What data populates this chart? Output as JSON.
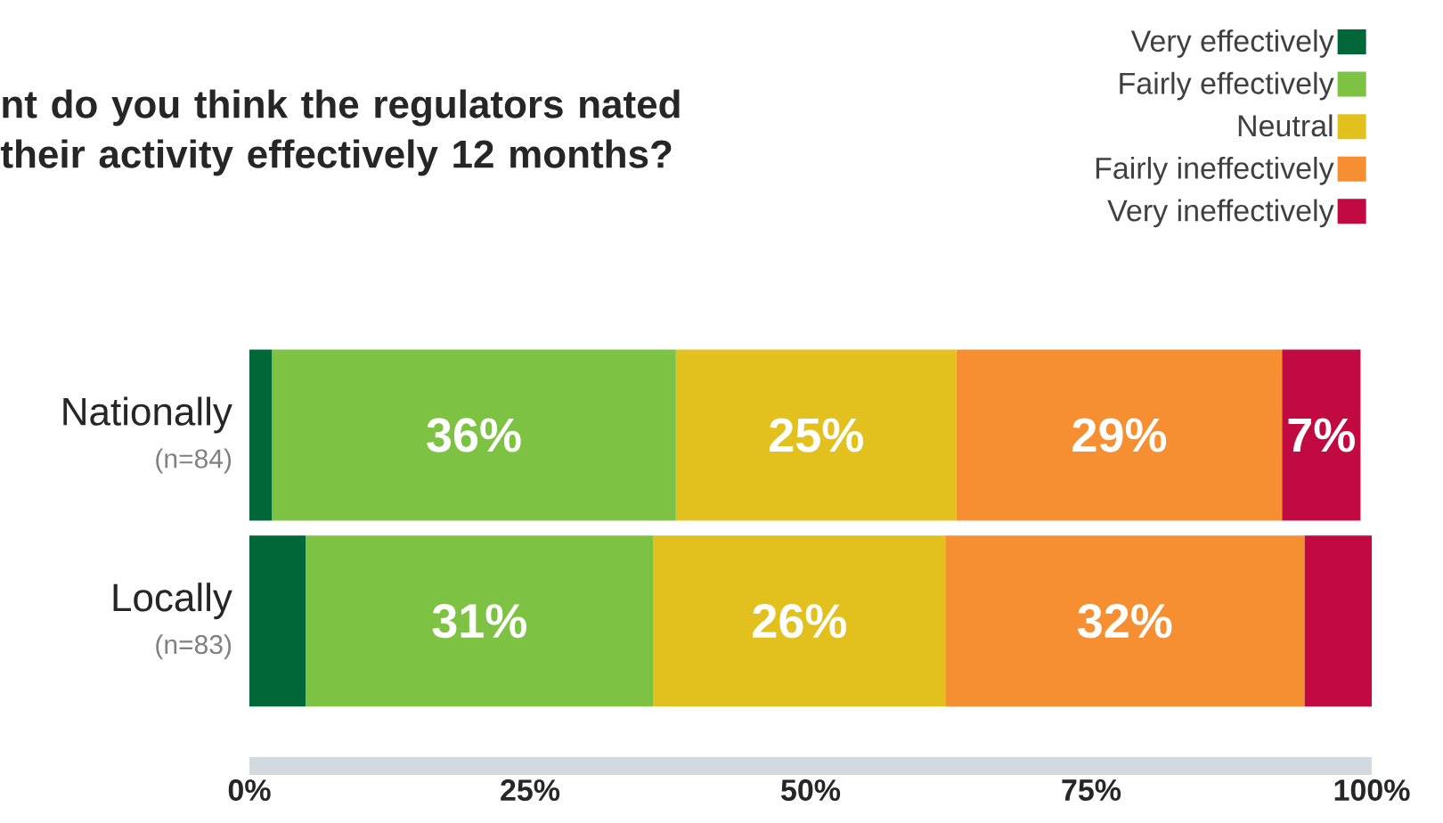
{
  "chart_data": {
    "type": "bar",
    "orientation": "horizontal",
    "stacked": true,
    "title": "nt do you think the regulators nated their activity effectively 12 months?",
    "categories": [
      "Nationally",
      "Locally"
    ],
    "annotations": [
      "(n=84)",
      "(n=83)"
    ],
    "series": [
      {
        "name": "Very effectively",
        "color": "#006838",
        "values": [
          2,
          5
        ],
        "value_labels": [
          null,
          null
        ]
      },
      {
        "name": "Fairly effectively",
        "color": "#7dc242",
        "values": [
          36,
          31
        ],
        "value_labels": [
          "36%",
          "31%"
        ]
      },
      {
        "name": "Neutral",
        "color": "#e2c11f",
        "values": [
          25,
          26
        ],
        "value_labels": [
          "25%",
          "26%"
        ]
      },
      {
        "name": "Fairly ineffectively",
        "color": "#f58f31",
        "values": [
          29,
          32
        ],
        "value_labels": [
          "29%",
          "32%"
        ]
      },
      {
        "name": "Very ineffectively",
        "color": "#c10a42",
        "values": [
          7,
          6
        ],
        "value_labels": [
          "7%",
          null
        ]
      }
    ],
    "xlim": [
      0,
      100
    ],
    "xticks": [
      {
        "value": 0,
        "label": "0%"
      },
      {
        "value": 25,
        "label": "25%"
      },
      {
        "value": 50,
        "label": "50%"
      },
      {
        "value": 75,
        "label": "75%"
      },
      {
        "value": 100,
        "label": "100%"
      }
    ],
    "grid": false,
    "legend": "top right"
  }
}
